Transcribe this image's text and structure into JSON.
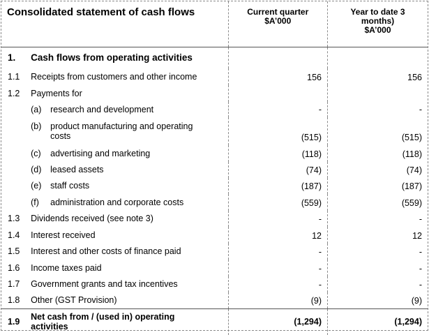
{
  "header": {
    "title": "Consolidated statement of cash flows",
    "col_current": [
      "Current quarter",
      "$A’000"
    ],
    "col_ytd": [
      "Year to date 3",
      "months)",
      "$A’000"
    ]
  },
  "section": {
    "num": "1.",
    "label": "Cash flows from operating activities"
  },
  "rows": [
    {
      "num": "1.1",
      "letter": "",
      "label": "Receipts from customers and other income",
      "current": "156",
      "ytd": "156"
    },
    {
      "num": "1.2",
      "letter": "",
      "label": "Payments for",
      "current": "",
      "ytd": ""
    },
    {
      "num": "",
      "letter": "(a)",
      "label": "research and development",
      "current": "-",
      "ytd": "-"
    },
    {
      "num": "",
      "letter": "(b)",
      "label": "product manufacturing and operating costs",
      "current": "(515)",
      "ytd": "(515)"
    },
    {
      "num": "",
      "letter": "(c)",
      "label": "advertising and marketing",
      "current": "(118)",
      "ytd": "(118)"
    },
    {
      "num": "",
      "letter": "(d)",
      "label": "leased assets",
      "current": "(74)",
      "ytd": "(74)"
    },
    {
      "num": "",
      "letter": "(e)",
      "label": "staff costs",
      "current": "(187)",
      "ytd": "(187)"
    },
    {
      "num": "",
      "letter": "(f)",
      "label": "administration and corporate costs",
      "current": "(559)",
      "ytd": "(559)"
    },
    {
      "num": "1.3",
      "letter": "",
      "label": "Dividends received (see note 3)",
      "current": "-",
      "ytd": "-"
    },
    {
      "num": "1.4",
      "letter": "",
      "label": "Interest received",
      "current": "12",
      "ytd": "12"
    },
    {
      "num": "1.5",
      "letter": "",
      "label": "Interest and other costs of finance paid",
      "current": "-",
      "ytd": "-"
    },
    {
      "num": "1.6",
      "letter": "",
      "label": "Income taxes paid",
      "current": "-",
      "ytd": "-"
    },
    {
      "num": "1.7",
      "letter": "",
      "label": "Government grants and tax incentives",
      "current": "-",
      "ytd": "-"
    },
    {
      "num": "1.8",
      "letter": "",
      "label": "Other (GST Provision)",
      "current": "(9)",
      "ytd": "(9)"
    }
  ],
  "total": {
    "num": "1.9",
    "label": "Net cash from / (used in) operating activities",
    "current": "(1,294)",
    "ytd": "(1,294)"
  }
}
